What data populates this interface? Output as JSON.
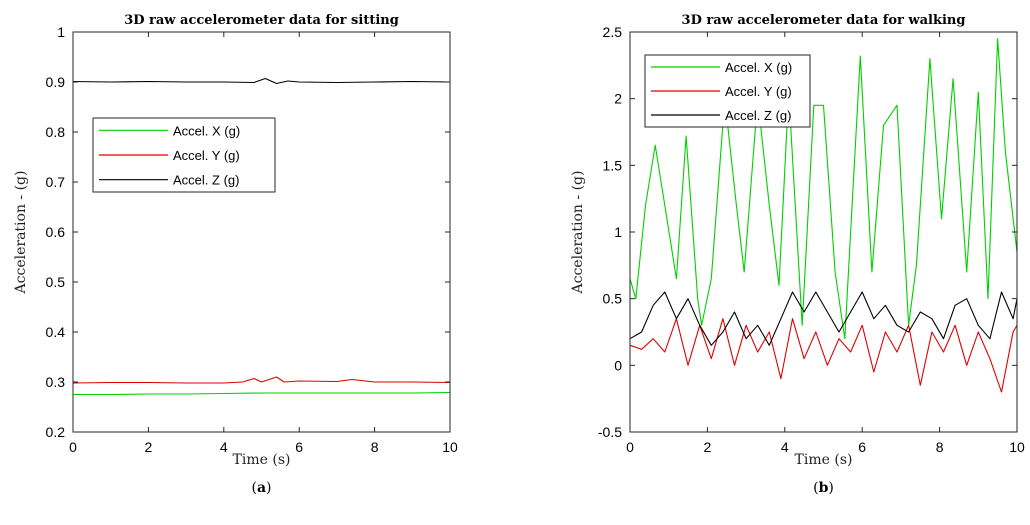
{
  "chart_data": [
    {
      "type": "line",
      "title": "3D raw accelerometer data for sitting",
      "xlabel": "Time (s)",
      "ylabel": "Acceleration - (g)",
      "panel_label": {
        "open": "(",
        "letter": "a",
        "close": ")"
      },
      "xlim": [
        0,
        10
      ],
      "ylim": [
        0.2,
        1.0
      ],
      "xticks": [
        0,
        2,
        4,
        6,
        8,
        10
      ],
      "xtick_labels": [
        "0",
        "2",
        "4",
        "6",
        "8",
        "10"
      ],
      "yticks": [
        0.2,
        0.3,
        0.4,
        0.5,
        0.6,
        0.7,
        0.8,
        0.9,
        1.0
      ],
      "ytick_labels": [
        "0.2",
        "0.3",
        "0.4",
        "0.5",
        "0.6",
        "0.7",
        "0.8",
        "0.9",
        "1"
      ],
      "grid": false,
      "legend_placement": "center-left",
      "series": [
        {
          "name": "Accel. X (g)",
          "color": "#00d000",
          "x": [
            0,
            1,
            2,
            3,
            4,
            5,
            6,
            7,
            8,
            9,
            10
          ],
          "y": [
            0.275,
            0.275,
            0.276,
            0.276,
            0.277,
            0.278,
            0.278,
            0.278,
            0.278,
            0.278,
            0.279
          ]
        },
        {
          "name": "Accel. Y (g)",
          "color": "#e00000",
          "x": [
            0,
            1,
            2,
            3,
            4,
            4.5,
            4.8,
            5.0,
            5.4,
            5.6,
            6,
            7,
            7.4,
            8,
            9,
            10
          ],
          "y": [
            0.298,
            0.299,
            0.299,
            0.298,
            0.298,
            0.3,
            0.307,
            0.3,
            0.31,
            0.3,
            0.302,
            0.301,
            0.305,
            0.3,
            0.3,
            0.299
          ]
        },
        {
          "name": "Accel. Z (g)",
          "color": "#000000",
          "x": [
            0,
            1,
            2,
            3,
            4,
            4.8,
            5.1,
            5.4,
            5.7,
            6,
            7,
            8,
            9,
            10
          ],
          "y": [
            0.901,
            0.9,
            0.901,
            0.9,
            0.9,
            0.899,
            0.907,
            0.897,
            0.902,
            0.9,
            0.899,
            0.9,
            0.901,
            0.9
          ]
        }
      ]
    },
    {
      "type": "line",
      "title": "3D raw accelerometer data for walking",
      "xlabel": "Time (s)",
      "ylabel": "Acceleration - (g)",
      "panel_label": {
        "open": "(",
        "letter": "b",
        "close": ")"
      },
      "xlim": [
        0,
        10
      ],
      "ylim": [
        -0.5,
        2.5
      ],
      "xticks": [
        0,
        2,
        4,
        6,
        8,
        10
      ],
      "xtick_labels": [
        "0",
        "2",
        "4",
        "6",
        "8",
        "10"
      ],
      "yticks": [
        -0.5,
        0,
        0.5,
        1,
        1.5,
        2,
        2.5
      ],
      "ytick_labels": [
        "-0.5",
        "0",
        "0.5",
        "1",
        "1.5",
        "2",
        "2.5"
      ],
      "grid": false,
      "legend_placement": "top-left",
      "series": [
        {
          "name": "Accel. X (g)",
          "color": "#00d000",
          "x": [
            0,
            0.15,
            0.4,
            0.65,
            0.9,
            1.2,
            1.45,
            1.75,
            1.85,
            2.1,
            2.45,
            2.75,
            2.95,
            3.3,
            3.6,
            3.85,
            4.1,
            4.45,
            4.75,
            5.0,
            5.3,
            5.55,
            5.95,
            6.25,
            6.55,
            6.9,
            7.2,
            7.4,
            7.75,
            8.05,
            8.35,
            8.7,
            9.0,
            9.25,
            9.5,
            9.7,
            10
          ],
          "y": [
            0.65,
            0.5,
            1.2,
            1.65,
            1.2,
            0.65,
            1.72,
            0.5,
            0.3,
            0.65,
            2.0,
            1.2,
            0.7,
            2.0,
            1.2,
            0.6,
            2.05,
            0.3,
            1.95,
            1.95,
            0.7,
            0.2,
            2.32,
            0.7,
            1.8,
            1.95,
            0.3,
            0.75,
            2.3,
            1.1,
            2.15,
            0.7,
            2.05,
            0.5,
            2.45,
            1.6,
            0.85
          ]
        },
        {
          "name": "Accel. Y (g)",
          "color": "#e00000",
          "x": [
            0,
            0.3,
            0.6,
            0.9,
            1.2,
            1.5,
            1.8,
            2.1,
            2.4,
            2.7,
            3.0,
            3.3,
            3.6,
            3.9,
            4.2,
            4.5,
            4.8,
            5.1,
            5.4,
            5.7,
            6.0,
            6.3,
            6.6,
            6.9,
            7.2,
            7.5,
            7.8,
            8.1,
            8.4,
            8.7,
            9.0,
            9.3,
            9.6,
            9.9,
            10
          ],
          "y": [
            0.15,
            0.12,
            0.2,
            0.1,
            0.35,
            0.0,
            0.3,
            0.05,
            0.35,
            0.0,
            0.3,
            0.1,
            0.25,
            -0.1,
            0.35,
            0.05,
            0.25,
            0.0,
            0.2,
            0.1,
            0.3,
            -0.05,
            0.25,
            0.1,
            0.3,
            -0.15,
            0.25,
            0.1,
            0.3,
            0.0,
            0.25,
            0.05,
            -0.2,
            0.25,
            0.3
          ]
        },
        {
          "name": "Accel. Z (g)",
          "color": "#000000",
          "x": [
            0,
            0.3,
            0.6,
            0.9,
            1.2,
            1.5,
            1.8,
            2.1,
            2.4,
            2.7,
            3.0,
            3.3,
            3.6,
            3.9,
            4.2,
            4.5,
            4.8,
            5.1,
            5.4,
            5.7,
            6.0,
            6.3,
            6.6,
            6.9,
            7.2,
            7.5,
            7.8,
            8.1,
            8.4,
            8.7,
            9.0,
            9.3,
            9.6,
            9.9,
            10
          ],
          "y": [
            0.2,
            0.25,
            0.45,
            0.55,
            0.35,
            0.5,
            0.3,
            0.15,
            0.25,
            0.4,
            0.2,
            0.3,
            0.15,
            0.35,
            0.55,
            0.4,
            0.55,
            0.4,
            0.25,
            0.4,
            0.55,
            0.35,
            0.45,
            0.3,
            0.25,
            0.4,
            0.35,
            0.2,
            0.45,
            0.5,
            0.3,
            0.2,
            0.55,
            0.35,
            0.5
          ]
        }
      ]
    }
  ]
}
